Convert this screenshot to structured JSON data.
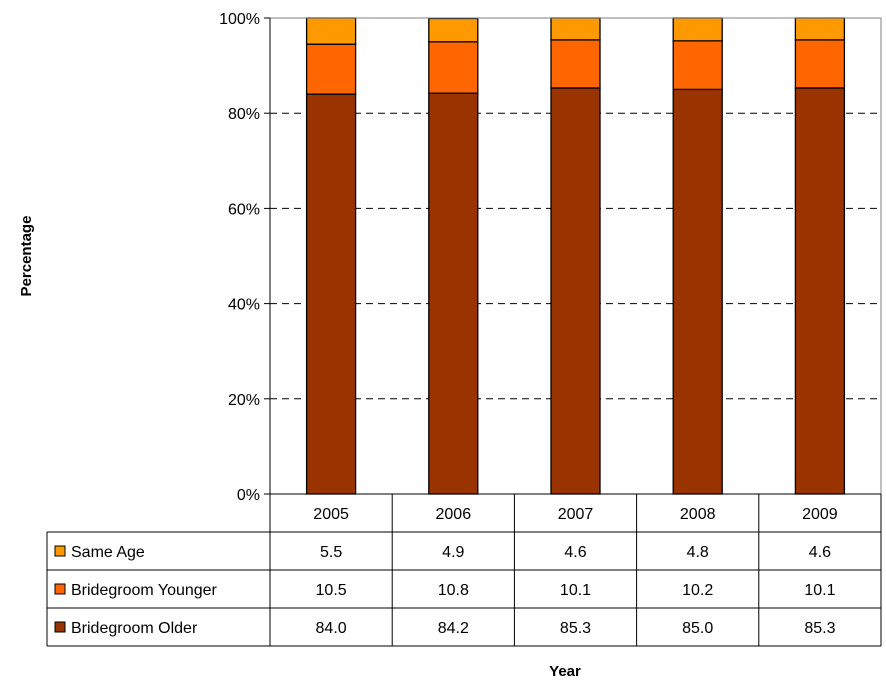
{
  "chart_data": {
    "type": "bar",
    "stacked": true,
    "percent_scale": true,
    "categories": [
      "2005",
      "2006",
      "2007",
      "2008",
      "2009"
    ],
    "series": [
      {
        "name": "Bridegroom Older",
        "values": [
          84.0,
          84.2,
          85.3,
          85.0,
          85.3
        ],
        "color": "#993300"
      },
      {
        "name": "Bridegroom Younger",
        "values": [
          10.5,
          10.8,
          10.1,
          10.2,
          10.1
        ],
        "color": "#FF6600"
      },
      {
        "name": "Same Age",
        "values": [
          5.5,
          4.9,
          4.6,
          4.8,
          4.6
        ],
        "color": "#FF9900"
      }
    ],
    "table_rows": [
      "Same Age",
      "Bridegroom Younger",
      "Bridegroom Older"
    ],
    "xlabel": "Year",
    "ylabel": "Percentage",
    "yticks": [
      "0%",
      "20%",
      "40%",
      "60%",
      "80%",
      "100%"
    ],
    "ylim": [
      0,
      100
    ],
    "grid": "horizontal dashed",
    "legend": "data table below chart"
  }
}
